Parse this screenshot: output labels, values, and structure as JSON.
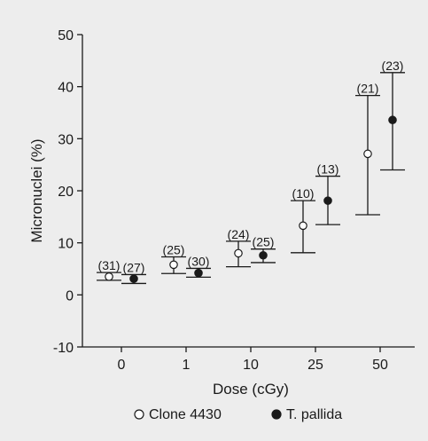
{
  "chart_data": {
    "type": "scatter",
    "subtype": "error-bar",
    "title": "",
    "xlabel": "Dose (cGy)",
    "ylabel": "Micronuclei (%)",
    "ylim": [
      -10,
      50
    ],
    "yticks": [
      "-10",
      "0",
      "10",
      "20",
      "30",
      "40",
      "50"
    ],
    "categories": [
      "0",
      "1",
      "10",
      "25",
      "50"
    ],
    "legend_placement": "bottom",
    "grid": false,
    "series": [
      {
        "name": "Clone 4430",
        "marker": "open-circle",
        "values": [
          3.5,
          5.8,
          8.0,
          13.3,
          27.1
        ],
        "lower": [
          2.8,
          4.1,
          5.4,
          8.1,
          15.4
        ],
        "upper": [
          4.3,
          7.3,
          10.3,
          18.1,
          38.3
        ],
        "n_labels": [
          "(31)",
          "(25)",
          "(24)",
          "(10)",
          "(21)"
        ]
      },
      {
        "name": "T. pallida",
        "marker": "filled-circle",
        "values": [
          3.1,
          4.2,
          7.6,
          18.1,
          33.6
        ],
        "lower": [
          2.2,
          3.4,
          6.2,
          13.5,
          24.0
        ],
        "upper": [
          3.9,
          5.1,
          8.8,
          22.8,
          42.7
        ],
        "n_labels": [
          "(27)",
          "(30)",
          "(25)",
          "(13)",
          "(23)"
        ]
      }
    ]
  }
}
